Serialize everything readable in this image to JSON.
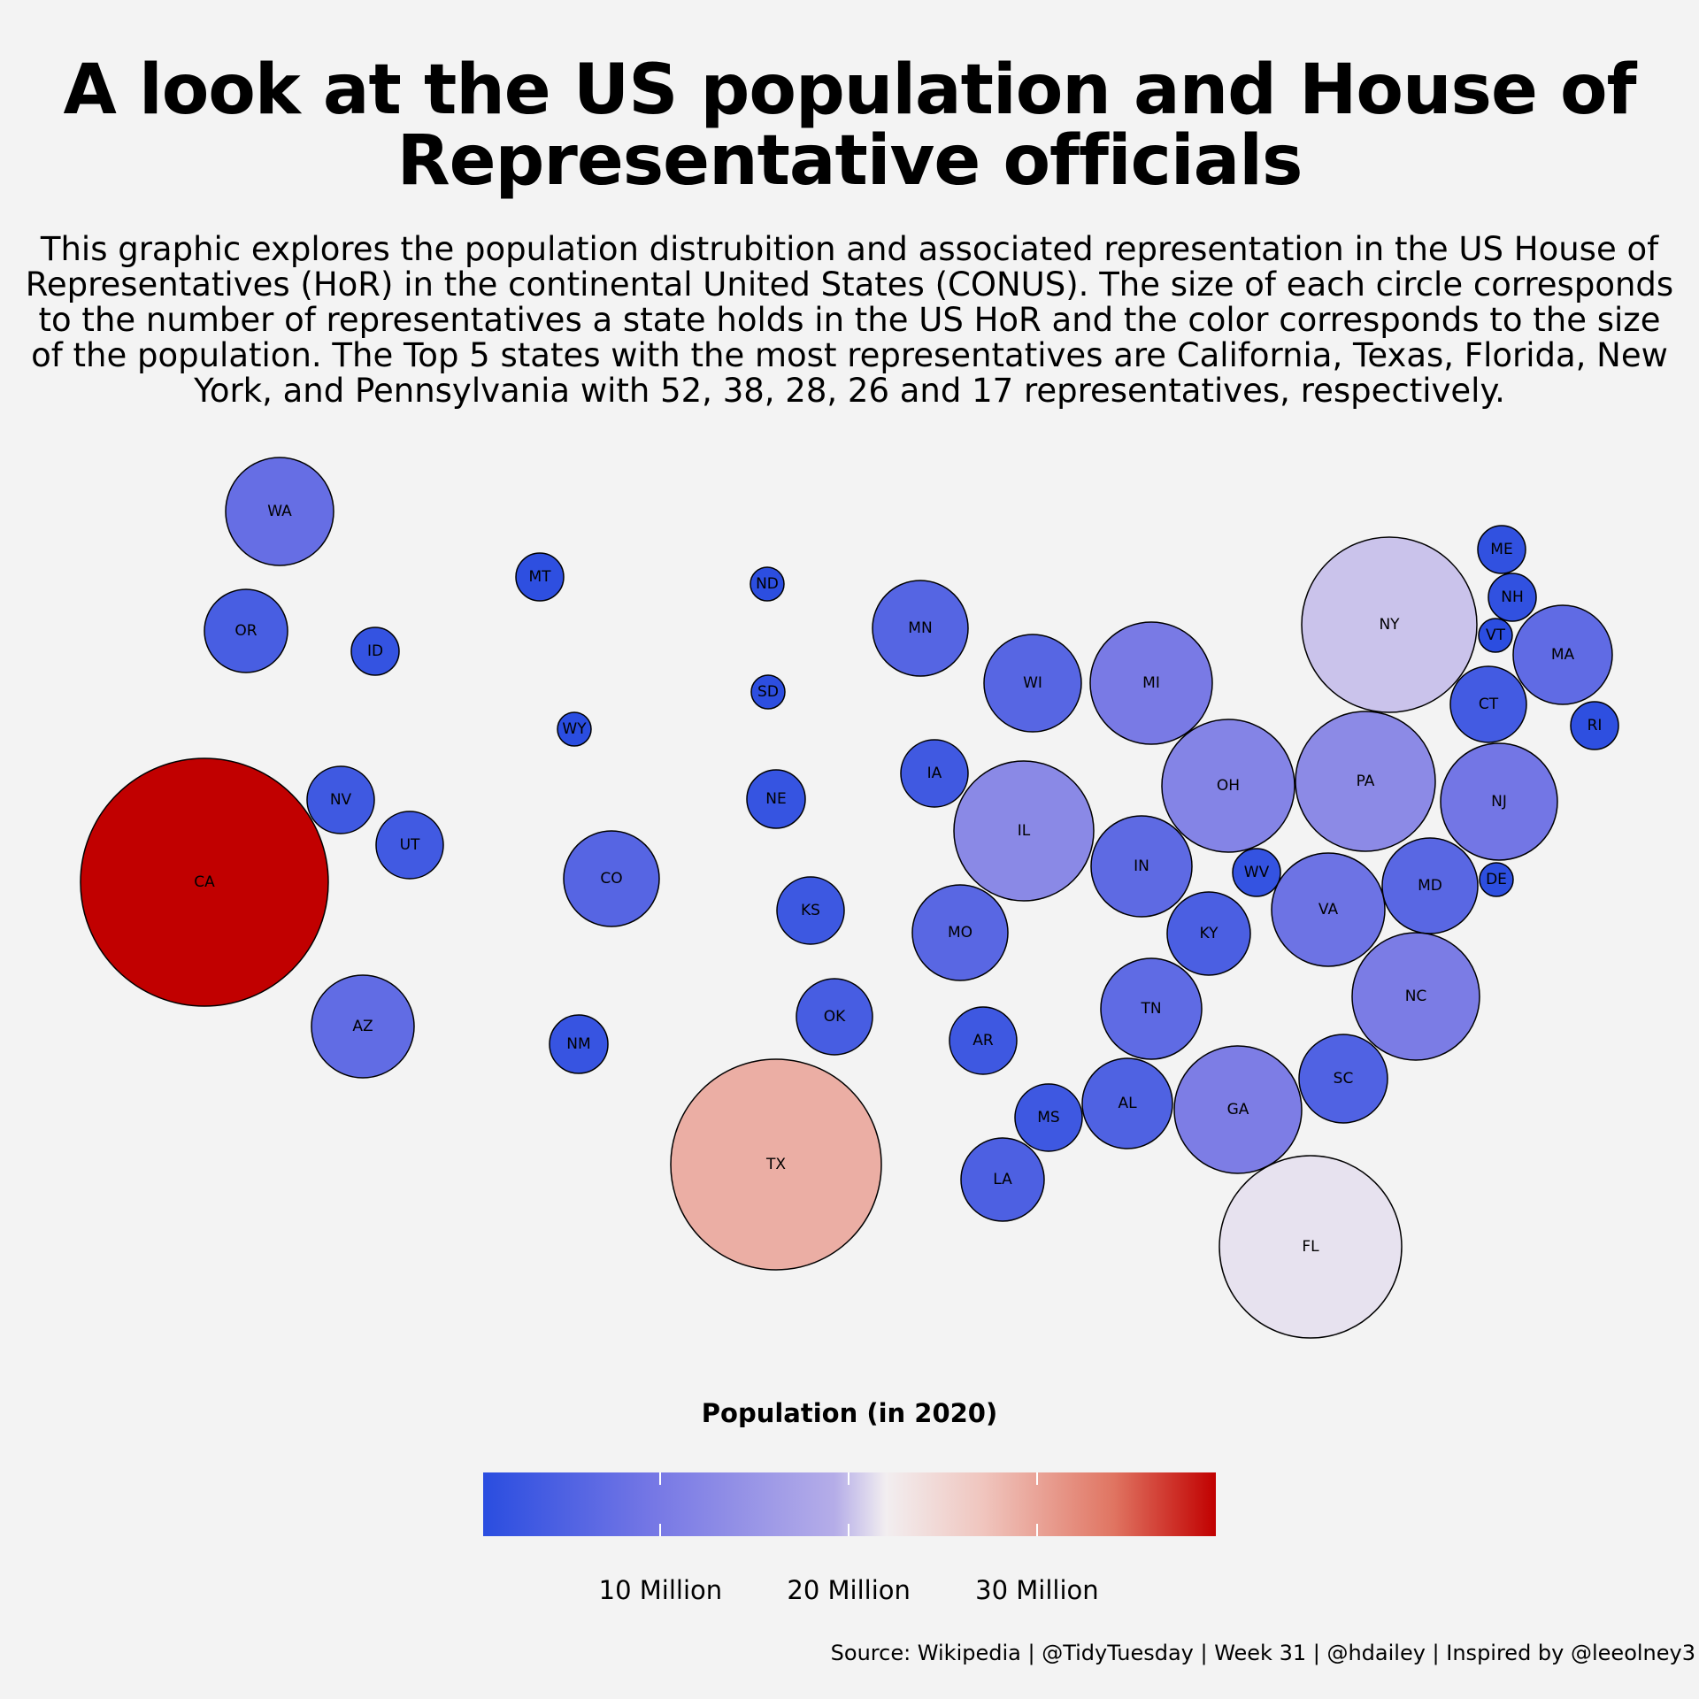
{
  "title": "A look at the US population and House of Representative officials",
  "subtitle": "This graphic explores the population distrubition and associated representation in the US House of Representatives (HoR) in the continental United States (CONUS). The size of each circle corresponds to the number of representatives a state holds in the US HoR and the color corresponds to the size of the population. The Top 5 states with the most representatives are California, Texas, Florida, New York, and Pennsylvania with 52, 38, 28, 26 and 17 representatives, respectively.",
  "caption": "Source: Wikipedia | @TidyTuesday | Week 31 | @hdailey | Inspired by @leeolney3",
  "colors": {
    "low": "#2a4de0",
    "mid": "#f2eef0",
    "high": "#c10000",
    "background": "#f3f3f3"
  },
  "chart_data": {
    "type": "bubble-map",
    "size_variable": "representatives",
    "color_variable": "population_2020",
    "legend": {
      "title": "Population (in 2020)",
      "range_millions": [
        0.58,
        39.5
      ],
      "ticks": [
        {
          "value": 10,
          "label": "10 Million"
        },
        {
          "value": 20,
          "label": "20 Million"
        },
        {
          "value": 30,
          "label": "30 Million"
        }
      ]
    },
    "states": [
      {
        "code": "WA",
        "pop": 7.7
      },
      {
        "code": "OR",
        "pop": 4.2
      },
      {
        "code": "ID",
        "pop": 1.8
      },
      {
        "code": "MT",
        "pop": 1.1
      },
      {
        "code": "ND",
        "pop": 0.78
      },
      {
        "code": "SD",
        "pop": 0.89
      },
      {
        "code": "WY",
        "pop": 0.58
      },
      {
        "code": "MN",
        "pop": 5.7
      },
      {
        "code": "WI",
        "pop": 5.9
      },
      {
        "code": "MI",
        "pop": 10.1
      },
      {
        "code": "NY",
        "pop": 20.2
      },
      {
        "code": "ME",
        "pop": 1.4
      },
      {
        "code": "NH",
        "pop": 1.4
      },
      {
        "code": "VT",
        "pop": 0.64
      },
      {
        "code": "MA",
        "pop": 7.0
      },
      {
        "code": "CT",
        "pop": 3.6
      },
      {
        "code": "RI",
        "pop": 1.1
      },
      {
        "code": "NV",
        "pop": 3.1
      },
      {
        "code": "UT",
        "pop": 3.3
      },
      {
        "code": "CA",
        "pop": 39.5
      },
      {
        "code": "CO",
        "pop": 5.8
      },
      {
        "code": "NE",
        "pop": 2.0
      },
      {
        "code": "IA",
        "pop": 3.2
      },
      {
        "code": "IL",
        "pop": 12.8
      },
      {
        "code": "OH",
        "pop": 11.8
      },
      {
        "code": "PA",
        "pop": 13.0
      },
      {
        "code": "NJ",
        "pop": 9.3
      },
      {
        "code": "IN",
        "pop": 6.8
      },
      {
        "code": "WV",
        "pop": 1.8
      },
      {
        "code": "MD",
        "pop": 6.2
      },
      {
        "code": "DE",
        "pop": 0.99
      },
      {
        "code": "KS",
        "pop": 2.9
      },
      {
        "code": "MO",
        "pop": 6.2
      },
      {
        "code": "KY",
        "pop": 4.5
      },
      {
        "code": "VA",
        "pop": 8.6
      },
      {
        "code": "AZ",
        "pop": 7.2
      },
      {
        "code": "NC",
        "pop": 10.4
      },
      {
        "code": "TN",
        "pop": 6.9
      },
      {
        "code": "OK",
        "pop": 4.0
      },
      {
        "code": "AR",
        "pop": 3.0
      },
      {
        "code": "NM",
        "pop": 2.1
      },
      {
        "code": "SC",
        "pop": 5.1
      },
      {
        "code": "AL",
        "pop": 5.0
      },
      {
        "code": "MS",
        "pop": 3.0
      },
      {
        "code": "GA",
        "pop": 10.7
      },
      {
        "code": "TX",
        "pop": 29.1
      },
      {
        "code": "LA",
        "pop": 4.7
      },
      {
        "code": "FL",
        "pop": 21.5
      }
    ]
  }
}
